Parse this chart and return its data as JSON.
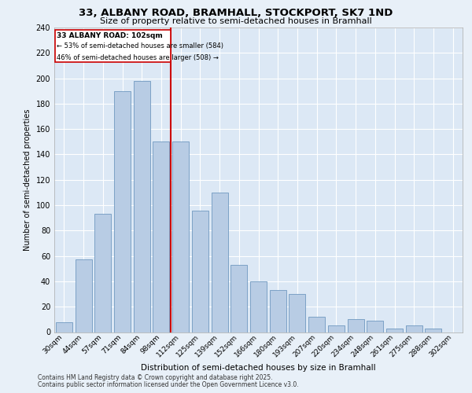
{
  "title_line1": "33, ALBANY ROAD, BRAMHALL, STOCKPORT, SK7 1ND",
  "title_line2": "Size of property relative to semi-detached houses in Bramhall",
  "xlabel": "Distribution of semi-detached houses by size in Bramhall",
  "ylabel": "Number of semi-detached properties",
  "categories": [
    "30sqm",
    "44sqm",
    "57sqm",
    "71sqm",
    "84sqm",
    "98sqm",
    "112sqm",
    "125sqm",
    "139sqm",
    "152sqm",
    "166sqm",
    "180sqm",
    "193sqm",
    "207sqm",
    "220sqm",
    "234sqm",
    "248sqm",
    "261sqm",
    "275sqm",
    "288sqm",
    "302sqm"
  ],
  "values": [
    8,
    57,
    93,
    190,
    198,
    150,
    150,
    96,
    110,
    53,
    40,
    33,
    30,
    12,
    5,
    10,
    9,
    3,
    5,
    3,
    0
  ],
  "bar_color": "#b8cce4",
  "bar_edge_color": "#7099c0",
  "property_label": "33 ALBANY ROAD: 102sqm",
  "annotation_line1": "← 53% of semi-detached houses are smaller (584)",
  "annotation_line2": "46% of semi-detached houses are larger (508) →",
  "vline_color": "#cc0000",
  "box_color": "#cc0000",
  "ylim": [
    0,
    240
  ],
  "yticks": [
    0,
    20,
    40,
    60,
    80,
    100,
    120,
    140,
    160,
    180,
    200,
    220,
    240
  ],
  "footnote_line1": "Contains HM Land Registry data © Crown copyright and database right 2025.",
  "footnote_line2": "Contains public sector information licensed under the Open Government Licence v3.0.",
  "bg_color": "#e8f0f8",
  "plot_bg_color": "#dce8f5"
}
